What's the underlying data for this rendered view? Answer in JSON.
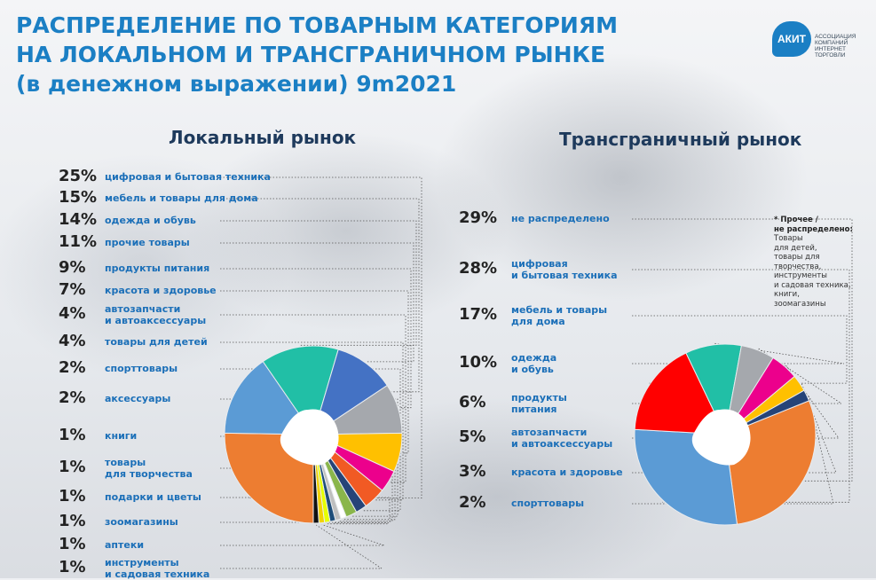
{
  "title": {
    "line1": "РАСПРЕДЕЛЕНИЕ ПО ТОВАРНЫМ КАТЕГОРИЯМ",
    "line2": "НА ЛОКАЛЬНОМ И ТРАНСГРАНИЧНОМ РЫНКЕ",
    "line3": "(в денежном выражении) 9m2021"
  },
  "logo": {
    "abbr": "АКИТ",
    "line1": "АССОЦИАЦИЯ",
    "line2": "КОМПАНИЙ",
    "line3": "ИНТЕРНЕТ",
    "line4": "ТОРГОВЛИ"
  },
  "note": {
    "title1": "* Прочее /",
    "title2": "не распределено:",
    "body": [
      "Товары",
      "для детей,",
      "товары для",
      "творчества,",
      "инструменты",
      "и садовая техника,",
      "книги,",
      "зоомагазины"
    ]
  },
  "chart_data": [
    {
      "type": "pie",
      "title": "Локальный рынок",
      "unit": "%",
      "slices": [
        {
          "label": [
            "цифровая и бытовая техника"
          ],
          "pct_text": "25%",
          "value": 25,
          "color": "#ed7d31"
        },
        {
          "label": [
            "мебель и товары для дома"
          ],
          "pct_text": "15%",
          "value": 15,
          "color": "#5b9bd5"
        },
        {
          "label": [
            "одежда и обувь"
          ],
          "pct_text": "14%",
          "value": 14,
          "color": "#21bfa6"
        },
        {
          "label": [
            "прочие товары"
          ],
          "pct_text": "11%",
          "value": 11,
          "color": "#4472c4"
        },
        {
          "label": [
            "продукты питания"
          ],
          "pct_text": "9%",
          "value": 9,
          "color": "#a5a8ad"
        },
        {
          "label": [
            "красота и здоровье"
          ],
          "pct_text": "7%",
          "value": 7,
          "color": "#ffc000"
        },
        {
          "label": [
            "автозапчасти",
            "и автоаксессуары"
          ],
          "pct_text": "4%",
          "value": 4,
          "color": "#ec008c"
        },
        {
          "label": [
            "товары для детей"
          ],
          "pct_text": "4%",
          "value": 4,
          "color": "#f15a24"
        },
        {
          "label": [
            "спорттовары"
          ],
          "pct_text": "2%",
          "value": 2,
          "color": "#264478"
        },
        {
          "label": [
            "аксессуары"
          ],
          "pct_text": "2%",
          "value": 2,
          "color": "#8ab64b"
        },
        {
          "label": [
            "книги"
          ],
          "pct_text": "1%",
          "value": 1,
          "color": "#ffffff"
        },
        {
          "label": [
            "товары",
            "для творчества"
          ],
          "pct_text": "1%",
          "value": 1,
          "color": "#bfbfbf"
        },
        {
          "label": [
            "подарки и цветы"
          ],
          "pct_text": "1%",
          "value": 1,
          "color": "#1f4e79"
        },
        {
          "label": [
            "зоомагазины"
          ],
          "pct_text": "1%",
          "value": 1,
          "color": "#e6ff00"
        },
        {
          "label": [
            "аптеки"
          ],
          "pct_text": "1%",
          "value": 1,
          "color": "#f2d100"
        },
        {
          "label": [
            "инструменты",
            "и садовая техника"
          ],
          "pct_text": "1%",
          "value": 1,
          "color": "#111111"
        }
      ]
    },
    {
      "type": "pie",
      "title": "Трансграничный рынок",
      "unit": "%",
      "slices": [
        {
          "label": [
            "не распределено"
          ],
          "pct_text": "29%",
          "value": 29,
          "color": "#ed7d31"
        },
        {
          "label": [
            "цифровая",
            "и бытовая техника"
          ],
          "pct_text": "28%",
          "value": 28,
          "color": "#5b9bd5"
        },
        {
          "label": [
            "мебель и товары",
            "для дома"
          ],
          "pct_text": "17%",
          "value": 17,
          "color": "#ff0000"
        },
        {
          "label": [
            "одежда",
            "и обувь"
          ],
          "pct_text": "10%",
          "value": 10,
          "color": "#21bfa6"
        },
        {
          "label": [
            "продукты",
            "питания"
          ],
          "pct_text": "6%",
          "value": 6,
          "color": "#a5a8ad"
        },
        {
          "label": [
            "автозапчасти",
            "и автоаксессуары"
          ],
          "pct_text": "5%",
          "value": 5,
          "color": "#ec008c"
        },
        {
          "label": [
            "красота и здоровье"
          ],
          "pct_text": "3%",
          "value": 3,
          "color": "#ffc000"
        },
        {
          "label": [
            "спорттовары"
          ],
          "pct_text": "2%",
          "value": 2,
          "color": "#264478"
        }
      ]
    }
  ]
}
